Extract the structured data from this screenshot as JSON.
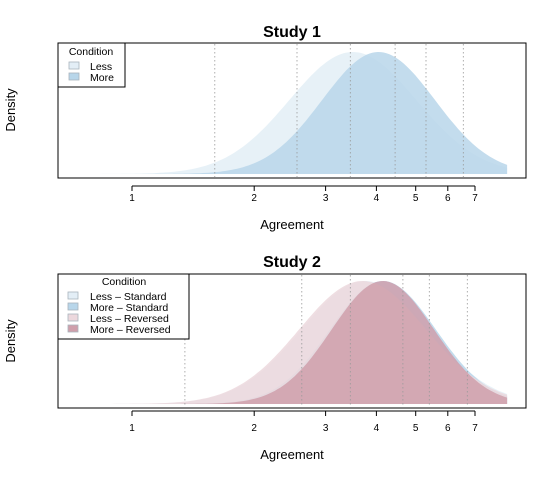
{
  "chart_data": [
    {
      "type": "area",
      "title": "Study 1",
      "xlabel": "Agreement",
      "ylabel": "Density",
      "x_scale": "log",
      "xlim": [
        0.62,
        8.4
      ],
      "xticks": [
        1,
        2,
        3,
        4,
        5,
        6,
        7
      ],
      "y_tick_labels": false,
      "grid": "vertical dotted reference lines",
      "legend": {
        "title": "Condition",
        "position": "top-left"
      },
      "series": [
        {
          "name": "Less",
          "color": "#e3eef6",
          "peak_x": 3.5,
          "spread": 0.36
        },
        {
          "name": "More",
          "color": "#b8d6ea",
          "peak_x": 4.05,
          "spread": 0.32
        }
      ],
      "reference_lines": [
        1.6,
        2.55,
        3.45,
        4.45,
        5.3,
        6.55
      ]
    },
    {
      "type": "area",
      "title": "Study 2",
      "xlabel": "Agreement",
      "ylabel": "Density",
      "x_scale": "log",
      "xlim": [
        0.62,
        8.4
      ],
      "xticks": [
        1,
        2,
        3,
        4,
        5,
        6,
        7
      ],
      "y_tick_labels": false,
      "grid": "vertical dotted reference lines",
      "legend": {
        "title": "Condition",
        "position": "top-left"
      },
      "series": [
        {
          "name": "Less – Standard",
          "color": "#e3eef6",
          "peak_x": 3.75,
          "spread": 0.36
        },
        {
          "name": "More – Standard",
          "color": "#b8d6ea",
          "peak_x": 4.15,
          "spread": 0.3
        },
        {
          "name": "Less – Reversed",
          "color": "#ecd8dd",
          "peak_x": 3.7,
          "spread": 0.36
        },
        {
          "name": "More – Reversed",
          "color": "#cf9fab",
          "peak_x": 4.15,
          "spread": 0.29
        }
      ],
      "reference_lines": [
        1.35,
        2.62,
        3.45,
        4.65,
        5.4,
        6.7
      ]
    }
  ]
}
